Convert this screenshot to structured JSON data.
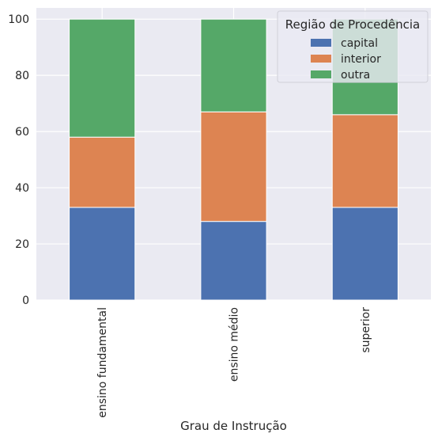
{
  "chart_data": {
    "type": "bar",
    "stacked": true,
    "categories": [
      "ensino fundamental",
      "ensino médio",
      "superior"
    ],
    "series": [
      {
        "name": "capital",
        "values": [
          33,
          28,
          33
        ],
        "color": "#4c72b0"
      },
      {
        "name": "interior",
        "values": [
          25,
          39,
          33
        ],
        "color": "#dd8452"
      },
      {
        "name": "outra",
        "values": [
          42,
          33,
          34
        ],
        "color": "#55a868"
      }
    ],
    "xlabel": "Grau de Instrução",
    "ylabel": "",
    "ylim": [
      0,
      104
    ],
    "yticks": [
      0,
      20,
      40,
      60,
      80,
      100
    ],
    "legend": {
      "title": "Região de Procedência",
      "placement": "top-right"
    },
    "grid": true,
    "background": "#eaeaf2"
  }
}
